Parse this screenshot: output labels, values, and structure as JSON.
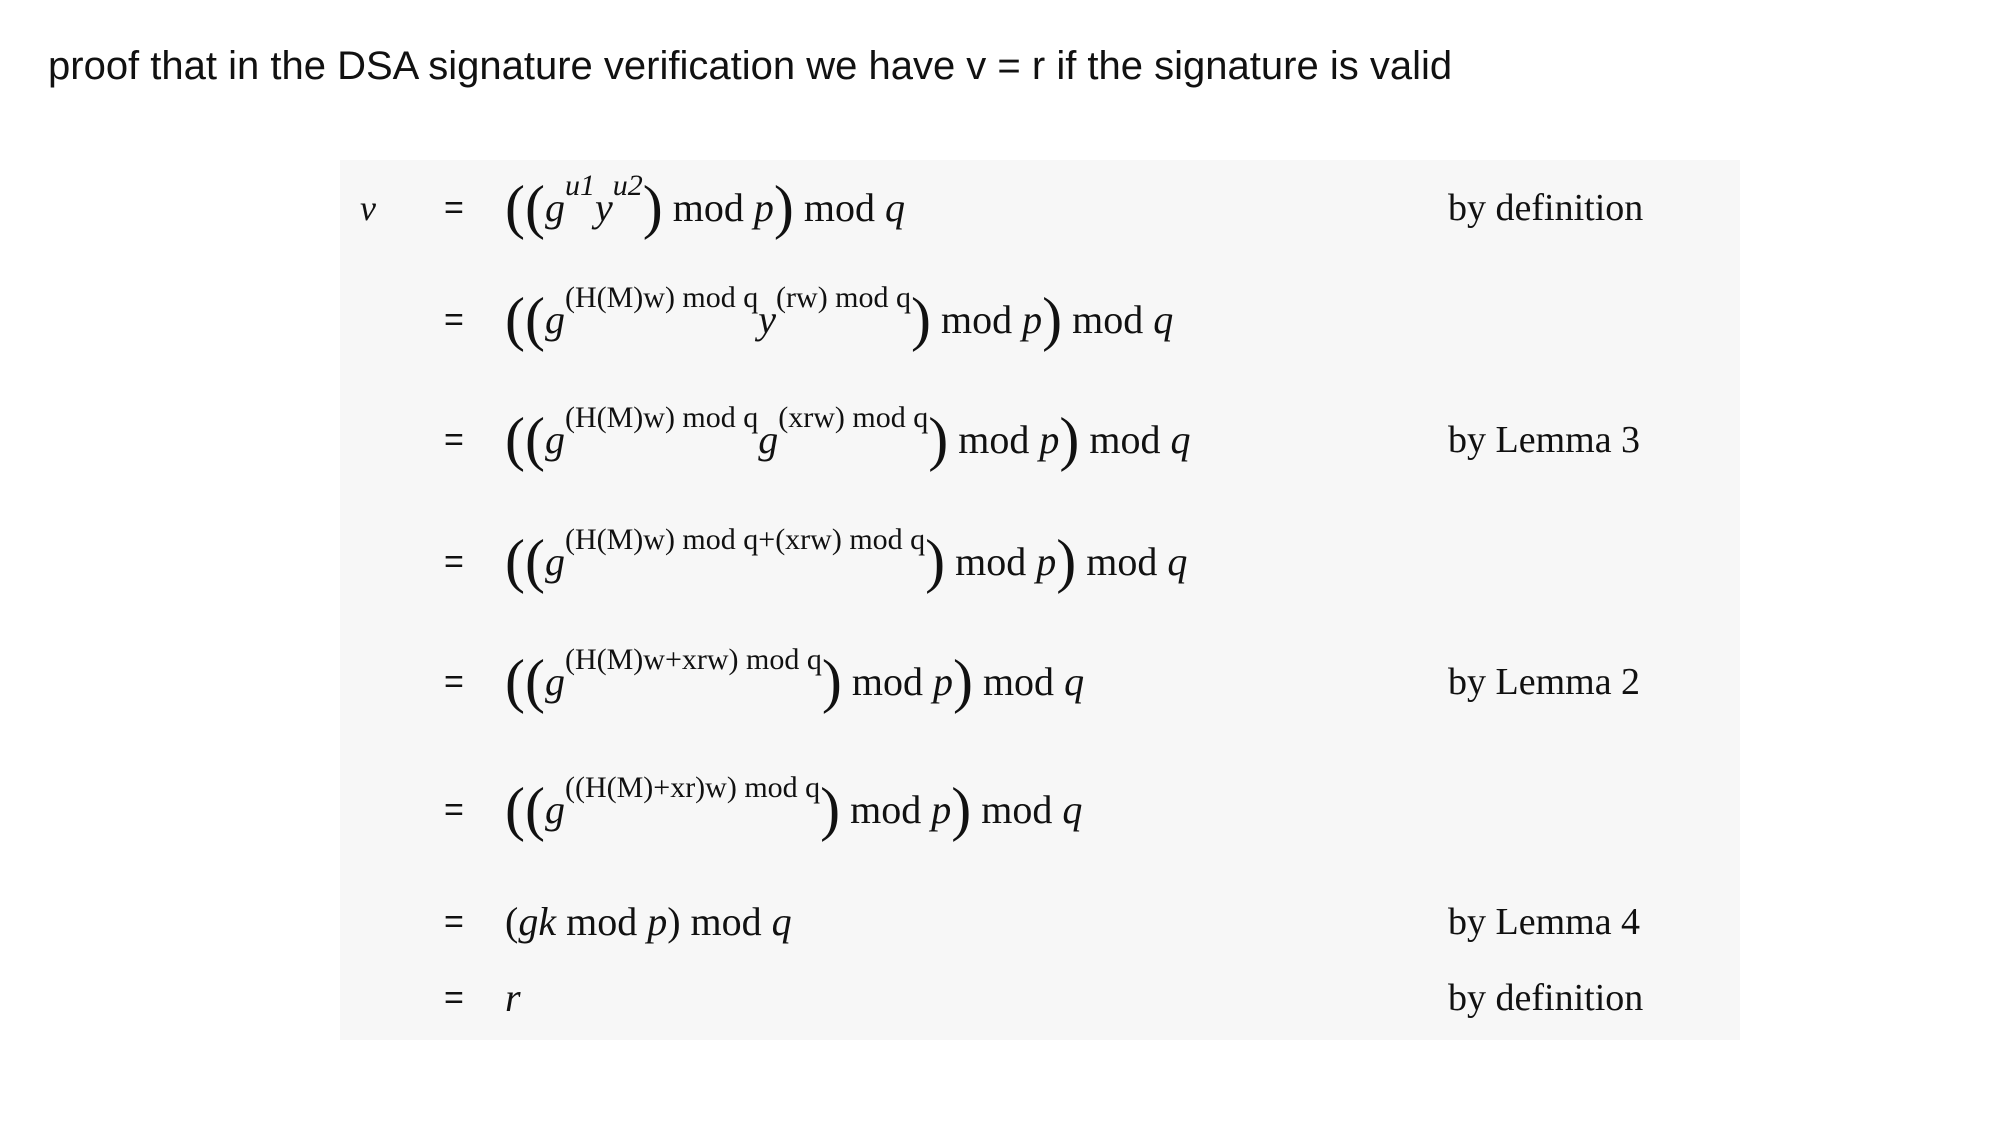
{
  "title": "proof that in the DSA signature verification we have v = r if the signature is valid",
  "proof": {
    "lhs": "v",
    "eq_sign": "=",
    "steps": [
      {
        "justification": "by definition"
      },
      {
        "justification": ""
      },
      {
        "justification": "by Lemma 3"
      },
      {
        "justification": ""
      },
      {
        "justification": "by Lemma 2"
      },
      {
        "justification": ""
      },
      {
        "justification": "by Lemma 4"
      },
      {
        "justification": "by definition"
      }
    ],
    "tokens": {
      "g": "g",
      "y": "y",
      "u1": "u1",
      "u2": "u2",
      "mod": "mod",
      "p": "p",
      "q": "q",
      "r": "r",
      "k": "k",
      "hmw": "(H(M)w) mod q",
      "rw": "(rw) mod q",
      "xrw": "(xrw) mod q",
      "sum1": "(H(M)w) mod q+(xrw) mod q",
      "sum2": "(H(M)w+xrw) mod q",
      "sum3": "((H(M)+xr)w) mod q"
    }
  }
}
